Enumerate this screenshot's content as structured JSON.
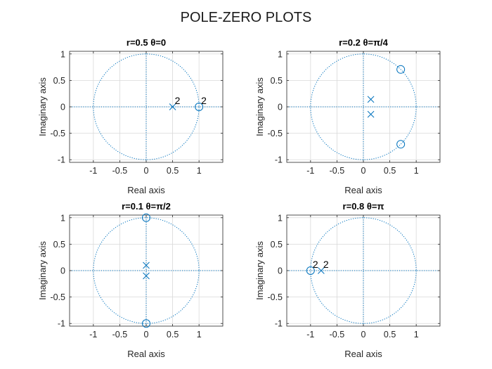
{
  "figure": {
    "title": "POLE-ZERO PLOTS",
    "colors": {
      "marker": "#0072BD",
      "grid": "#d9d9d9",
      "axes": "#262626",
      "text": "#262626"
    }
  },
  "chart_data": [
    {
      "type": "scatter",
      "title": "r=0.5   θ=0",
      "xlabel": "Real axis",
      "ylabel": "Imaginary axis",
      "xlim": [
        -1.45,
        1.45
      ],
      "ylim": [
        -1.05,
        1.05
      ],
      "xticks": [
        -1,
        -0.5,
        0,
        0.5,
        1
      ],
      "xtick_labels": [
        "-1",
        "-0.5",
        "0",
        "0.5",
        "1"
      ],
      "yticks": [
        -1,
        -0.5,
        0,
        0.5,
        1
      ],
      "ytick_labels": [
        "-1",
        "-0.5",
        "0",
        "0.5",
        "1"
      ],
      "grid": true,
      "unit_circle": true,
      "series": [
        {
          "marker": "x",
          "points": [
            {
              "x": 0.5,
              "y": 0,
              "multiplicity_label": "2"
            }
          ]
        },
        {
          "marker": "o",
          "points": [
            {
              "x": 1,
              "y": 0,
              "multiplicity_label": "2"
            }
          ]
        }
      ]
    },
    {
      "type": "scatter",
      "title": "r=0.2   θ=π/4",
      "xlabel": "Real axis",
      "ylabel": "Imaginary axis",
      "xlim": [
        -1.45,
        1.45
      ],
      "ylim": [
        -1.05,
        1.05
      ],
      "xticks": [
        -1,
        -0.5,
        0,
        0.5,
        1
      ],
      "xtick_labels": [
        "-1",
        "-0.5",
        "0",
        "0.5",
        "1"
      ],
      "yticks": [
        -1,
        -0.5,
        0,
        0.5,
        1
      ],
      "ytick_labels": [
        "-1",
        "-0.5",
        "0",
        "0.5",
        "1"
      ],
      "grid": true,
      "unit_circle": true,
      "series": [
        {
          "marker": "x",
          "points": [
            {
              "x": 0.141,
              "y": 0.141
            },
            {
              "x": 0.141,
              "y": -0.141
            }
          ]
        },
        {
          "marker": "o",
          "points": [
            {
              "x": 0.707,
              "y": 0.707
            },
            {
              "x": 0.707,
              "y": -0.707
            }
          ]
        }
      ]
    },
    {
      "type": "scatter",
      "title": "r=0.1   θ=π/2",
      "xlabel": "Real axis",
      "ylabel": "Imaginary axis",
      "xlim": [
        -1.45,
        1.45
      ],
      "ylim": [
        -1.05,
        1.05
      ],
      "xticks": [
        -1,
        -0.5,
        0,
        0.5,
        1
      ],
      "xtick_labels": [
        "-1",
        "-0.5",
        "0",
        "0.5",
        "1"
      ],
      "yticks": [
        -1,
        -0.5,
        0,
        0.5,
        1
      ],
      "ytick_labels": [
        "-1",
        "-0.5",
        "0",
        "0.5",
        "1"
      ],
      "grid": true,
      "unit_circle": true,
      "series": [
        {
          "marker": "x",
          "points": [
            {
              "x": 0,
              "y": 0.1
            },
            {
              "x": 0,
              "y": -0.1
            }
          ]
        },
        {
          "marker": "o",
          "points": [
            {
              "x": 0,
              "y": 1
            },
            {
              "x": 0,
              "y": -1
            }
          ]
        }
      ]
    },
    {
      "type": "scatter",
      "title": "r=0.8   θ=π",
      "xlabel": "Real axis",
      "ylabel": "Imaginary axis",
      "xlim": [
        -1.45,
        1.45
      ],
      "ylim": [
        -1.05,
        1.05
      ],
      "xticks": [
        -1,
        -0.5,
        0,
        0.5,
        1
      ],
      "xtick_labels": [
        "-1",
        "-0.5",
        "0",
        "0.5",
        "1"
      ],
      "yticks": [
        -1,
        -0.5,
        0,
        0.5,
        1
      ],
      "ytick_labels": [
        "-1",
        "-0.5",
        "0",
        "0.5",
        "1"
      ],
      "grid": true,
      "unit_circle": true,
      "series": [
        {
          "marker": "x",
          "points": [
            {
              "x": -0.8,
              "y": 0,
              "multiplicity_label": "2"
            }
          ]
        },
        {
          "marker": "o",
          "points": [
            {
              "x": -1,
              "y": 0,
              "multiplicity_label": "2"
            }
          ]
        }
      ]
    }
  ]
}
